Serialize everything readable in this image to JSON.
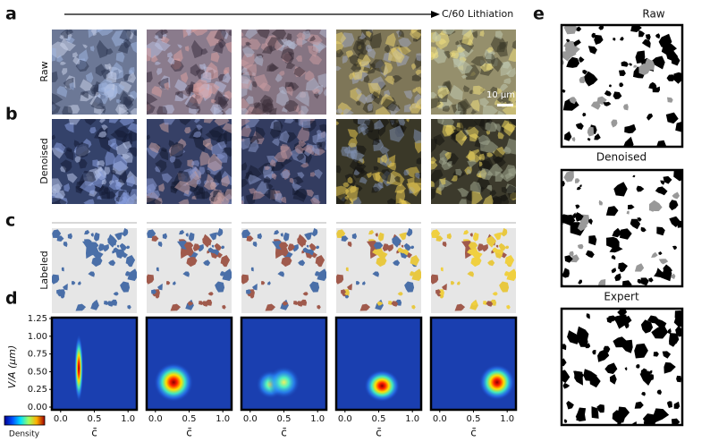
{
  "panel_labels": [
    "a",
    "b",
    "c",
    "d",
    "e"
  ],
  "arrow_label": "C/60 Lithiation",
  "row_labels": [
    "Raw",
    "Denoised",
    "Labeled"
  ],
  "scale_bar": "10 μm",
  "density": {
    "y_label": "V/A (μm)",
    "yticks": [
      "0.00",
      "0.25",
      "0.50",
      "0.75",
      "1.00",
      "1.25"
    ],
    "xticks": [
      "0.0",
      "0.5",
      "1.0"
    ],
    "x_label": "c̄",
    "colorbar_label": "Density"
  },
  "segmentation_titles": [
    "Raw",
    "Denoised",
    "Expert"
  ]
}
